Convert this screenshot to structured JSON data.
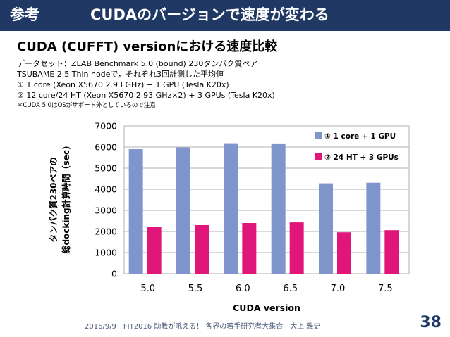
{
  "header": {
    "tag": "参考",
    "title": "CUDAのバージョンで速度が変わる"
  },
  "slide_title": "CUDA (CUFFT) versionにおける速度比較",
  "description": [
    "データセット：ZLAB Benchmark 5.0 (bound) 230タンパク質ペア",
    "TSUBAME 2.5 Thin nodeで，それぞれ3回計測した平均値",
    "① 1 core (Xeon X5670 2.93 GHz) + 1 GPU (Tesla K20x)",
    "② 12 core/24 HT (Xeon X5670 2.93 GHz×2) + 3 GPUs (Tesla K20x)",
    "＊CUDA 5.0はOSがサポート外としているので注意"
  ],
  "chart_data": {
    "type": "bar",
    "categories": [
      "5.0",
      "5.5",
      "6.0",
      "6.5",
      "7.0",
      "7.5"
    ],
    "series": [
      {
        "name": "① 1 core + 1 GPU",
        "color": "#7f96cc",
        "values": [
          5900,
          5980,
          6180,
          6170,
          4280,
          4310
        ]
      },
      {
        "name": "② 24 HT + 3 GPUs",
        "color": "#e0167a",
        "values": [
          2220,
          2300,
          2400,
          2430,
          1960,
          2060
        ]
      }
    ],
    "xlabel": "CUDA version",
    "ylabel_lines": [
      "タンパク質230ペアの",
      "総docking計算時間（sec)"
    ],
    "ylim": [
      0,
      7000
    ],
    "yticks": [
      0,
      1000,
      2000,
      3000,
      4000,
      5000,
      6000,
      7000
    ],
    "grid": true,
    "legend_position": "top-right"
  },
  "footer": {
    "text": "2016/9/9　FIT2016 助教が吼える！ 各界の若手研究者大集合　大上 雅史",
    "page": "38"
  }
}
